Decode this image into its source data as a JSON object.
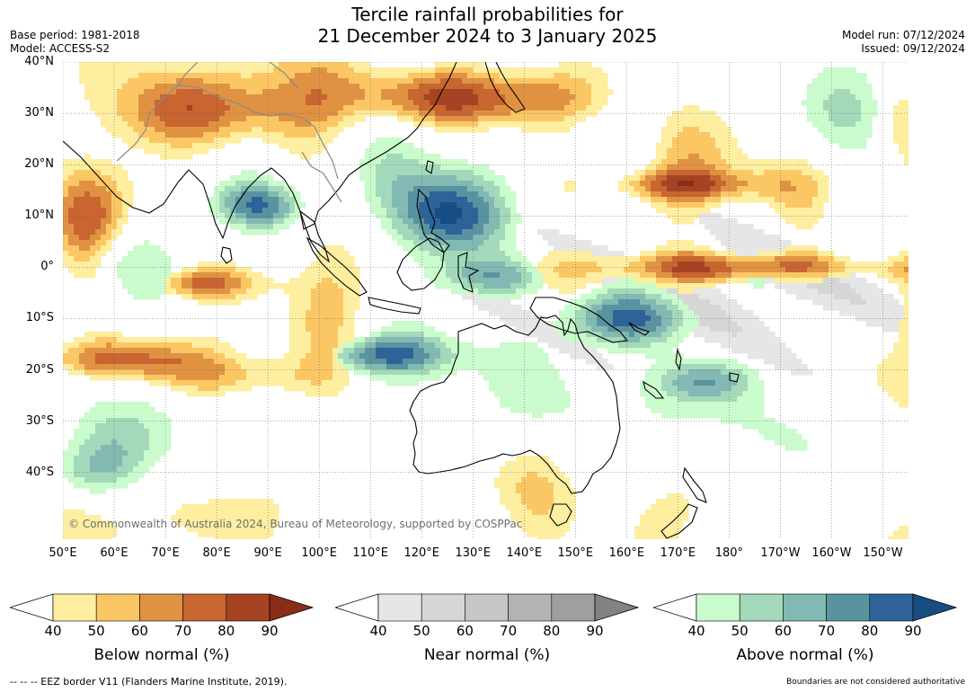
{
  "title_line1": "Tercile rainfall probabilities for",
  "title_line2": "21 December 2024 to 3 January 2025",
  "meta": {
    "base_period": "Base period: 1981-2018",
    "model": "Model: ACCESS-S2",
    "model_run": "Model run: 07/12/2024",
    "issued": "Issued: 09/12/2024"
  },
  "map": {
    "copyright": "© Commonwealth of Australia 2024, Bureau of Meteorology, supported by COSPPac",
    "lat_labels": [
      "40°N",
      "30°N",
      "20°N",
      "10°N",
      "0°",
      "10°S",
      "20°S",
      "30°S",
      "40°S"
    ],
    "lon_labels": [
      "50°E",
      "60°E",
      "70°E",
      "80°E",
      "90°E",
      "100°E",
      "110°E",
      "120°E",
      "130°E",
      "140°E",
      "150°E",
      "160°E",
      "170°E",
      "180°",
      "170°W",
      "160°W",
      "150°W"
    ],
    "colors": {
      "below": [
        "#fdeea0",
        "#fbc765",
        "#e09243",
        "#c86530",
        "#a54323",
        "#8a2d17"
      ],
      "near": [
        "#e6e6e6",
        "#d6d6d6",
        "#c6c6c6",
        "#b3b3b3",
        "#9f9f9f",
        "#828282"
      ],
      "above": [
        "#c9fbcc",
        "#a3d9ba",
        "#82b9b2",
        "#5a93a0",
        "#2d6399",
        "#184d84"
      ]
    }
  },
  "legends": [
    {
      "title": "Below normal (%)",
      "ticks": [
        "40",
        "50",
        "60",
        "70",
        "80",
        "90"
      ],
      "palette": "below"
    },
    {
      "title": "Near normal (%)",
      "ticks": [
        "40",
        "50",
        "60",
        "70",
        "80",
        "90"
      ],
      "palette": "near"
    },
    {
      "title": "Above normal (%)",
      "ticks": [
        "40",
        "50",
        "60",
        "70",
        "80",
        "90"
      ],
      "palette": "above"
    }
  ],
  "footer": {
    "eez": "--  --  -- EEZ border V11 (Flanders Marine Institute, 2019).",
    "disclaimer": "Boundaries are not considered authoritative"
  }
}
